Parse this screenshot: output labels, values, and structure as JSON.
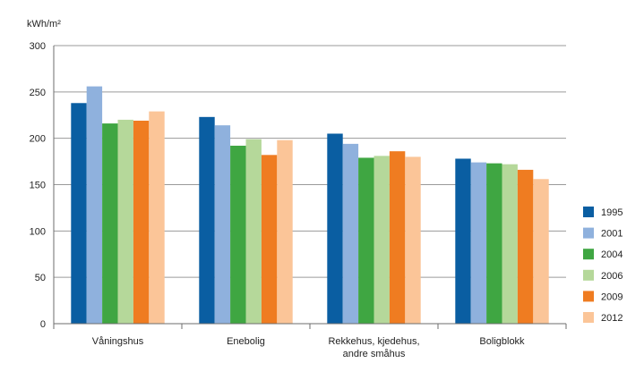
{
  "chart_data": {
    "type": "bar",
    "ylabel": "kWh/m²",
    "ylim": [
      0,
      300
    ],
    "yticks": [
      0,
      50,
      100,
      150,
      200,
      250,
      300
    ],
    "grid": true,
    "legend_position": "right",
    "categories": [
      [
        "Våningshus"
      ],
      [
        "Enebolig"
      ],
      [
        "Rekkehus, kjedehus,",
        "andre småhus"
      ],
      [
        "Boligblokk"
      ]
    ],
    "series": [
      {
        "name": "1995",
        "color": "#0a5ea2",
        "values": [
          238,
          223,
          205,
          178
        ]
      },
      {
        "name": "2001",
        "color": "#8fb1dd",
        "values": [
          256,
          214,
          194,
          174
        ]
      },
      {
        "name": "2004",
        "color": "#3fa642",
        "values": [
          216,
          192,
          179,
          173
        ]
      },
      {
        "name": "2006",
        "color": "#b5d89a",
        "values": [
          220,
          199,
          181,
          172
        ]
      },
      {
        "name": "2009",
        "color": "#ef7c21",
        "values": [
          219,
          182,
          186,
          166
        ]
      },
      {
        "name": "2012",
        "color": "#fbc598",
        "values": [
          229,
          198,
          180,
          156
        ]
      }
    ]
  }
}
